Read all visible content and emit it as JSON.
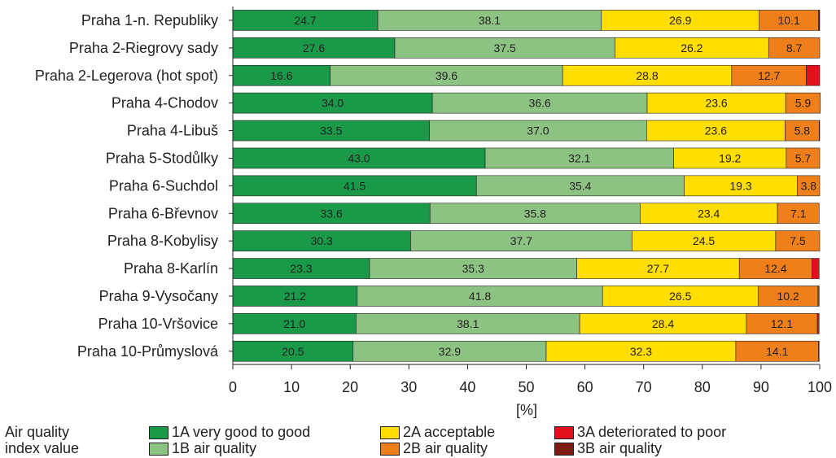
{
  "chart_data": {
    "type": "bar",
    "orientation": "horizontal",
    "stacked": true,
    "categories": [
      "Praha 1-n. Republiky",
      "Praha 2-Riegrovy sady",
      "Praha 2-Legerova (hot spot)",
      "Praha 4-Chodov",
      "Praha 4-Libuš",
      "Praha 5-Stodůlky",
      "Praha 6-Suchdol",
      "Praha 6-Břevnov",
      "Praha 8-Kobylisy",
      "Praha 8-Karlín",
      "Praha 9-Vysočany",
      "Praha 10-Vršovice",
      "Praha 10-Průmyslová"
    ],
    "series": [
      {
        "name": "1A",
        "color": "#1a9a48",
        "values": [
          24.7,
          27.6,
          16.6,
          34.0,
          33.5,
          43.0,
          41.5,
          33.6,
          30.3,
          23.3,
          21.2,
          21.0,
          20.5
        ]
      },
      {
        "name": "1B",
        "color": "#8cc282",
        "values": [
          38.1,
          37.5,
          39.6,
          36.6,
          37.0,
          32.1,
          35.4,
          35.8,
          37.7,
          35.3,
          41.8,
          38.1,
          32.9
        ]
      },
      {
        "name": "2A",
        "color": "#ffde00",
        "values": [
          26.9,
          26.2,
          28.8,
          23.6,
          23.6,
          19.2,
          19.3,
          23.4,
          24.5,
          27.7,
          26.5,
          28.4,
          32.3
        ]
      },
      {
        "name": "2B",
        "color": "#ef7f1a",
        "values": [
          10.1,
          8.7,
          12.7,
          5.9,
          5.8,
          5.7,
          3.8,
          7.1,
          7.5,
          12.4,
          10.2,
          12.1,
          14.1
        ]
      },
      {
        "name": "3A",
        "color": "#e3101e",
        "values": [
          0.1,
          0,
          2.3,
          0,
          0,
          0,
          0,
          0,
          0,
          1.2,
          0.2,
          0.3,
          0.1
        ]
      },
      {
        "name": "3B",
        "color": "#7f1a14",
        "values": [
          0.1,
          0,
          0,
          0,
          0.1,
          0,
          0,
          0,
          0,
          0,
          0,
          0,
          0
        ]
      }
    ],
    "data_labels": [
      [
        "24.7",
        "38.1",
        "26.9",
        "10.1"
      ],
      [
        "27.6",
        "37.5",
        "26.2",
        "8.7"
      ],
      [
        "16.6",
        "39.6",
        "28.8",
        "12.7"
      ],
      [
        "34.0",
        "36.6",
        "23.6",
        "5.9"
      ],
      [
        "33.5",
        "37.0",
        "23.6",
        "5.8"
      ],
      [
        "43.0",
        "32.1",
        "19.2",
        "5.7"
      ],
      [
        "41.5",
        "35.4",
        "19.3",
        "3.8"
      ],
      [
        "33.6",
        "35.8",
        "23.4",
        "7.1"
      ],
      [
        "30.3",
        "37.7",
        "24.5",
        "7.5"
      ],
      [
        "23.3",
        "35.3",
        "27.7",
        "12.4"
      ],
      [
        "21.2",
        "41.8",
        "26.5",
        "10.2"
      ],
      [
        "21.0",
        "38.1",
        "28.4",
        "12.1"
      ],
      [
        "20.5",
        "32.9",
        "32.3",
        "14.1"
      ]
    ],
    "xlabel": "[%]",
    "ylabel": "",
    "xlim": [
      0,
      100
    ],
    "x_ticks": [
      0,
      10,
      20,
      30,
      40,
      50,
      60,
      70,
      80,
      90,
      100
    ],
    "grid": false,
    "legend_position": "bottom",
    "legend": {
      "title_line1": "Air quality",
      "title_line2": "index value",
      "entries": [
        {
          "key": "1A",
          "color": "#1a9a48",
          "text": "1A  very good to good"
        },
        {
          "key": "1B",
          "color": "#8cc282",
          "text": "1B  air quality"
        },
        {
          "key": "2A",
          "color": "#ffde00",
          "text": "2A acceptable"
        },
        {
          "key": "2B",
          "color": "#ef7f1a",
          "text": "2B air quality"
        },
        {
          "key": "3A",
          "color": "#e3101e",
          "text": "3A  deteriorated to poor"
        },
        {
          "key": "3B",
          "color": "#7f1a14",
          "text": "3B  air quality"
        }
      ]
    }
  }
}
